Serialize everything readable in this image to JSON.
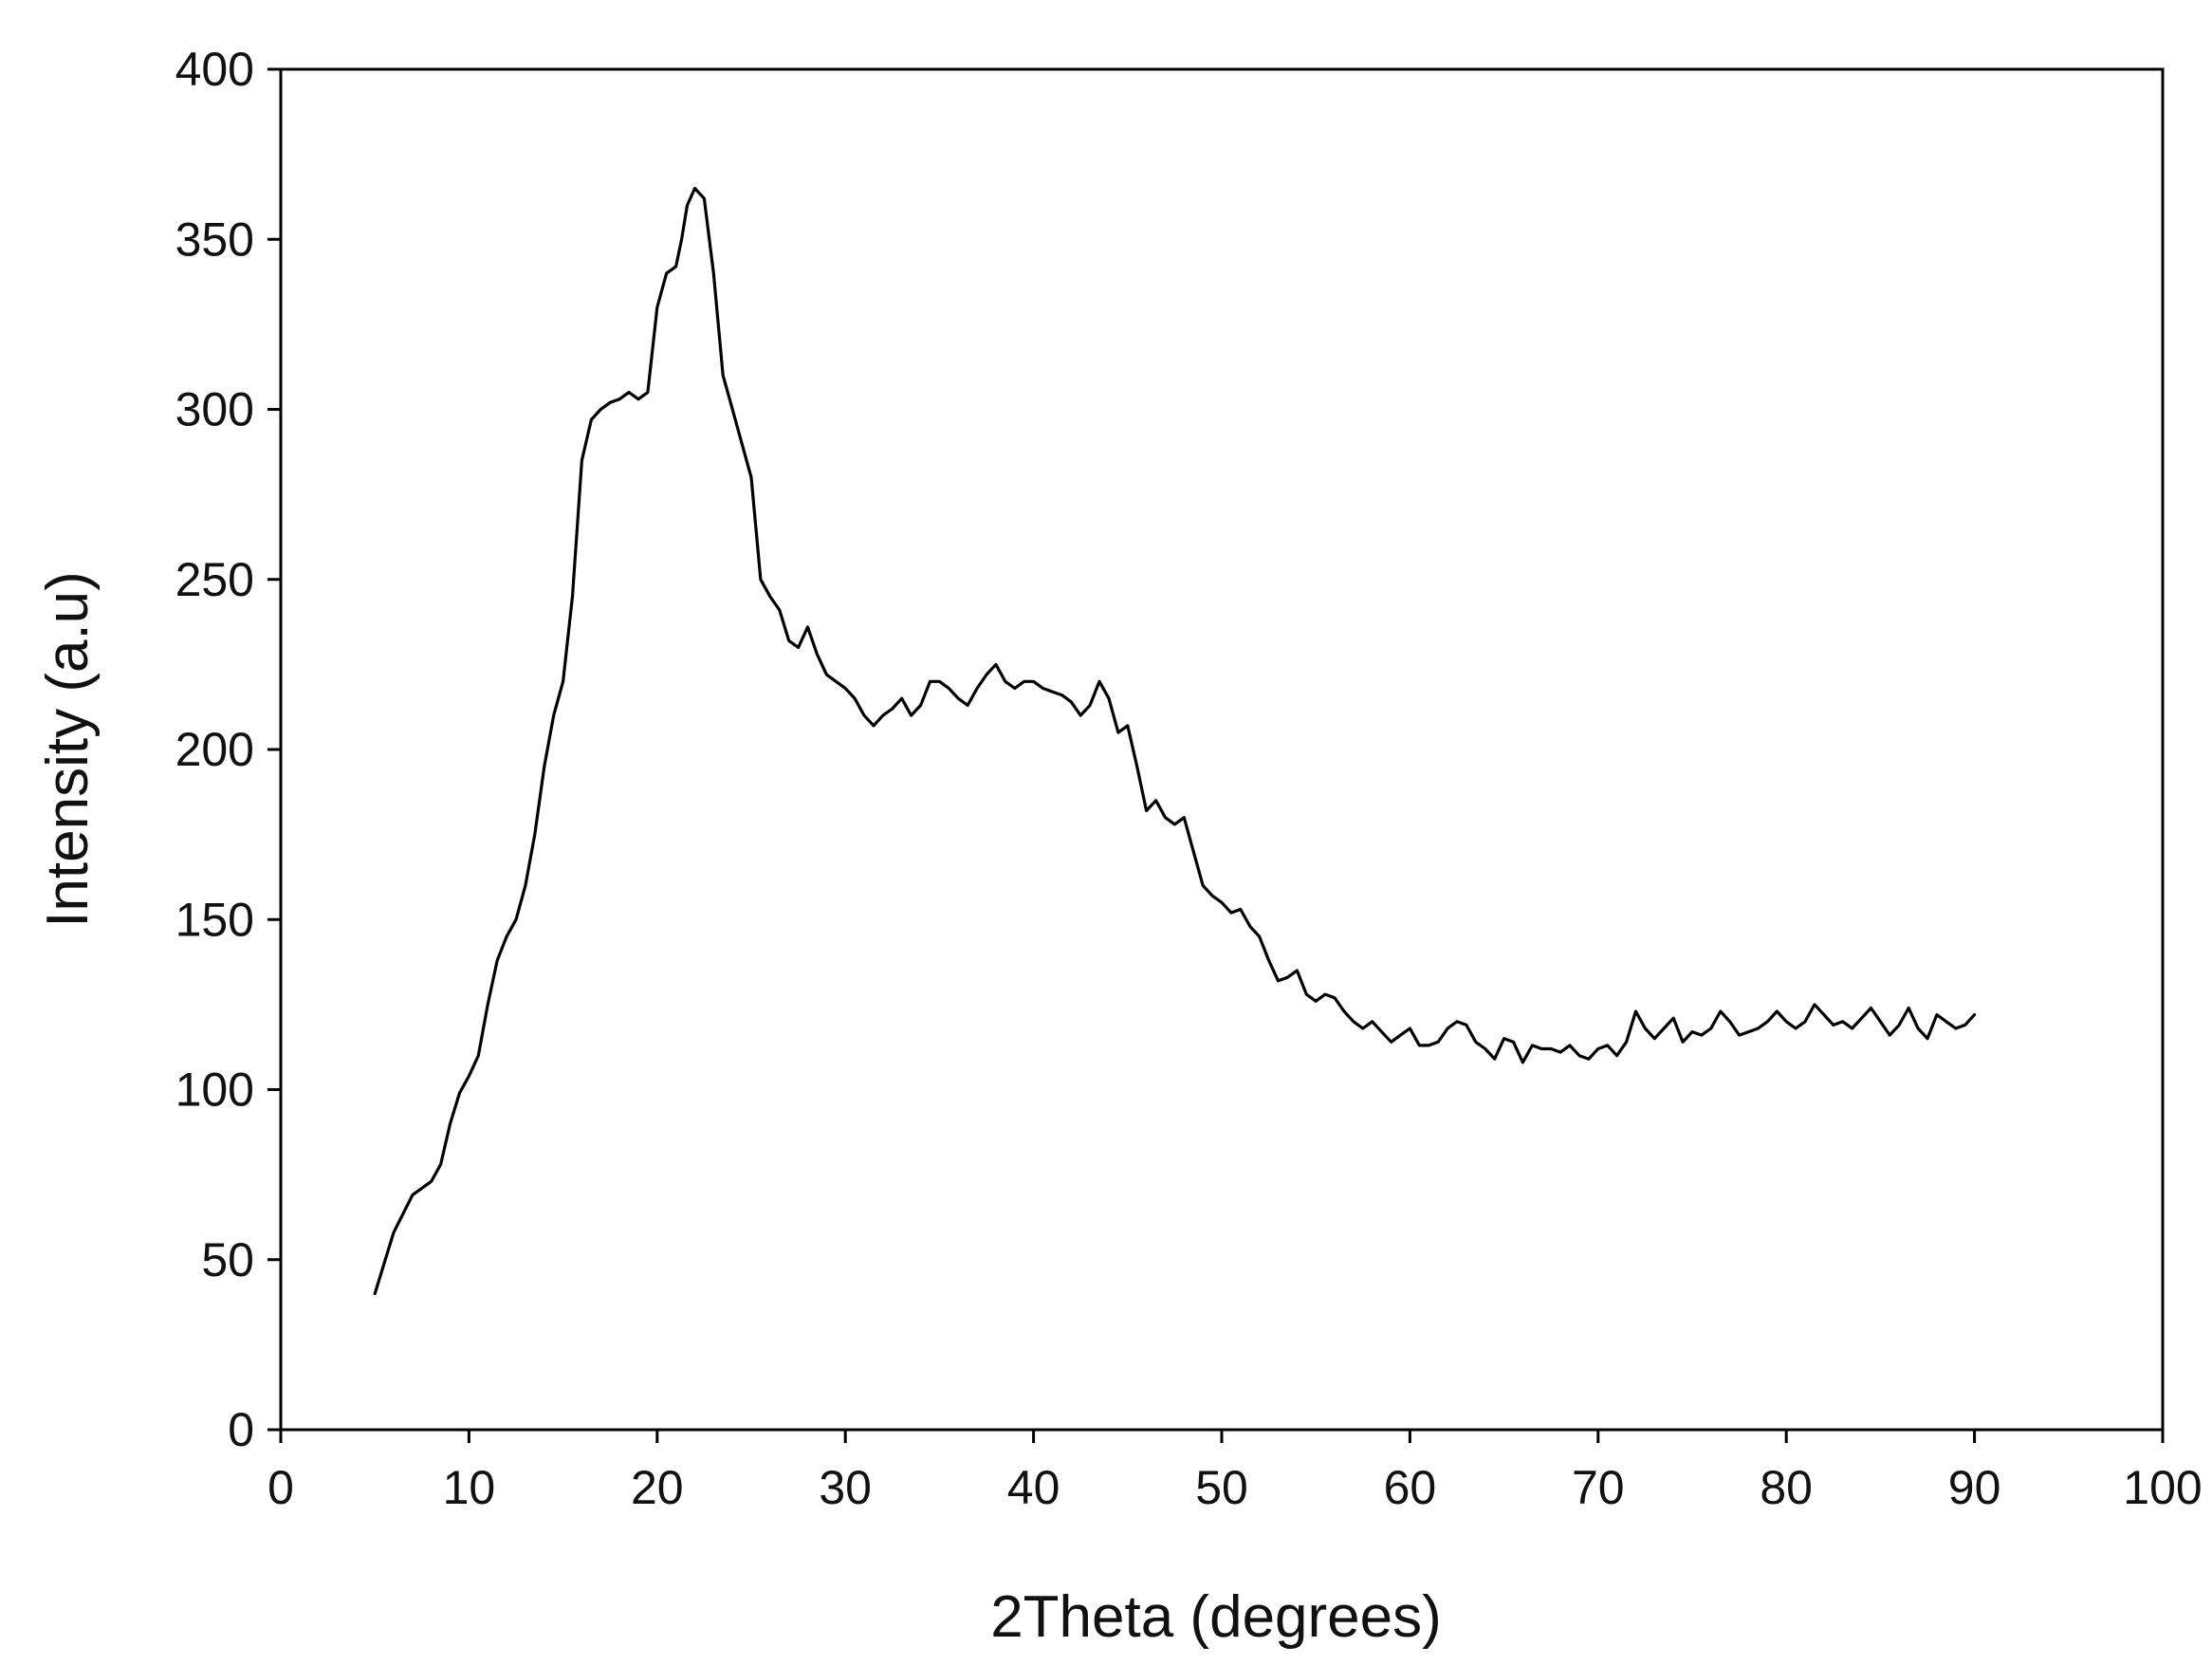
{
  "chart_data": {
    "type": "line",
    "title": "",
    "xlabel": "2Theta (degrees)",
    "ylabel": "Intensity (a.u)",
    "xlim": [
      0,
      100
    ],
    "ylim": [
      0,
      400
    ],
    "xticks": [
      0,
      10,
      20,
      30,
      40,
      50,
      60,
      70,
      80,
      90,
      100
    ],
    "yticks": [
      0,
      50,
      100,
      150,
      200,
      250,
      300,
      350,
      400
    ],
    "xtick_labels": [
      "0",
      "10",
      "20",
      "30",
      "40",
      "50",
      "60",
      "70",
      "80",
      "90",
      "100"
    ],
    "ytick_labels": [
      "0",
      "50",
      "100",
      "150",
      "200",
      "250",
      "300",
      "350",
      "400"
    ],
    "grid": false,
    "legend": "none",
    "line_color": "#000000",
    "series": [
      {
        "x": [
          5,
          6,
          7,
          8,
          8.5,
          9,
          9.5,
          10,
          10.5,
          11,
          11.5,
          12,
          12.5,
          13,
          13.5,
          14,
          14.5,
          15,
          15.5,
          16,
          16.5,
          17,
          17.5,
          18,
          18.5,
          19,
          19.5,
          20,
          20.5,
          21,
          21.3,
          21.6,
          22,
          22.5,
          23,
          23.5,
          24,
          24.5,
          25,
          25.5,
          26,
          26.5,
          27,
          27.5,
          28,
          28.5,
          29,
          29.5,
          30,
          30.5,
          31,
          31.5,
          32,
          32.5,
          33,
          33.5,
          34,
          34.5,
          35,
          35.5,
          36,
          36.5,
          37,
          37.5,
          38,
          38.5,
          39,
          39.5,
          40,
          40.5,
          41,
          41.5,
          42,
          42.5,
          43,
          43.5,
          44,
          44.5,
          45,
          45.5,
          46,
          46.5,
          47,
          47.5,
          48,
          48.5,
          49,
          49.5,
          50,
          50.5,
          51,
          51.5,
          52,
          52.5,
          53,
          53.5,
          54,
          54.5,
          55,
          55.5,
          56,
          56.5,
          57,
          57.5,
          58,
          58.5,
          59,
          59.5,
          60,
          60.5,
          61,
          61.5,
          62,
          62.5,
          63,
          63.5,
          64,
          64.5,
          65,
          65.5,
          66,
          66.5,
          67,
          67.5,
          68,
          68.5,
          69,
          69.5,
          70,
          70.5,
          71,
          71.5,
          72,
          72.5,
          73,
          73.5,
          74,
          74.5,
          75,
          75.5,
          76,
          76.5,
          77,
          77.5,
          78,
          78.5,
          79,
          79.5,
          80,
          80.5,
          81,
          81.5,
          82,
          82.5,
          83,
          83.5,
          84,
          84.5,
          85,
          85.5,
          86,
          86.5,
          87,
          87.5,
          88,
          88.5,
          89,
          89.5,
          90
        ],
        "y": [
          40,
          58,
          69,
          73,
          78,
          90,
          99,
          104,
          110,
          125,
          138,
          145,
          150,
          160,
          175,
          195,
          210,
          220,
          245,
          285,
          297,
          300,
          302,
          303,
          305,
          303,
          305,
          330,
          340,
          342,
          350,
          360,
          365,
          362,
          340,
          310,
          300,
          290,
          280,
          250,
          245,
          241,
          232,
          230,
          236,
          228,
          222,
          220,
          218,
          215,
          210,
          207,
          210,
          212,
          215,
          210,
          213,
          220,
          220,
          218,
          215,
          213,
          218,
          222,
          225,
          220,
          218,
          220,
          220,
          218,
          217,
          216,
          214,
          210,
          213,
          220,
          215,
          205,
          207,
          195,
          182,
          185,
          180,
          178,
          180,
          170,
          160,
          157,
          155,
          152,
          153,
          148,
          145,
          138,
          132,
          133,
          135,
          128,
          126,
          128,
          127,
          123,
          120,
          118,
          120,
          117,
          114,
          116,
          118,
          113,
          113,
          114,
          118,
          120,
          119,
          114,
          112,
          109,
          115,
          114,
          108,
          113,
          112,
          112,
          111,
          113,
          110,
          109,
          112,
          113,
          110,
          114,
          123,
          118,
          115,
          118,
          121,
          114,
          117,
          116,
          118,
          123,
          120,
          116,
          117,
          118,
          120,
          123,
          120,
          118,
          120,
          125,
          122,
          119,
          120,
          118,
          121,
          124,
          120,
          116,
          119,
          124,
          118,
          115,
          122,
          120,
          118,
          119,
          122
        ]
      }
    ]
  }
}
